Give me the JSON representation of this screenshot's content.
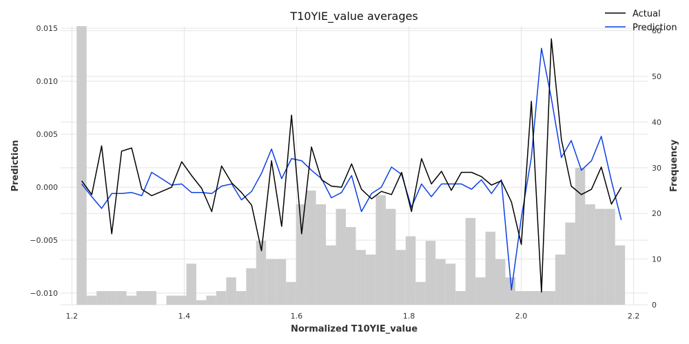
{
  "chart_data": {
    "type": "line+histogram",
    "title": "T10YIE_value averages",
    "xlabel": "Normalized T10YIE_value",
    "ylabel_left": "Prediction",
    "ylabel_right": "Frequency",
    "xlim": [
      1.18,
      2.225
    ],
    "ylim_left": [
      -0.0111,
      0.0152
    ],
    "ylim_right": [
      0,
      61
    ],
    "x_ticks": [
      1.2,
      1.4,
      1.6,
      1.8,
      2.0,
      2.2
    ],
    "x_tick_labels": [
      "1.2",
      "1.4",
      "1.6",
      "1.8",
      "2.0",
      "2.2"
    ],
    "y_left_ticks": [
      -0.01,
      -0.005,
      0.0,
      0.005,
      0.01,
      0.015
    ],
    "y_left_tick_labels": [
      "−0.010",
      "−0.005",
      "0.000",
      "0.005",
      "0.010",
      "0.015"
    ],
    "y_right_ticks": [
      0,
      10,
      20,
      30,
      40,
      50,
      60
    ],
    "y_right_tick_labels": [
      "0",
      "10",
      "20",
      "30",
      "40",
      "50",
      "60"
    ],
    "grid": true,
    "legend_position": "top-right",
    "colors": {
      "actual": "#000000",
      "prediction": "#0a3fe6",
      "histogram": "#cccccc",
      "grid": "#e3e3e3"
    },
    "histogram": {
      "bin_start": 1.2085,
      "bin_width": 0.01775,
      "counts": [
        61,
        2,
        3,
        3,
        3,
        2,
        3,
        3,
        0,
        2,
        2,
        9,
        1,
        2,
        3,
        6,
        3,
        8,
        14,
        10,
        10,
        5,
        22,
        25,
        22,
        13,
        21,
        17,
        12,
        11,
        24,
        21,
        12,
        15,
        5,
        14,
        10,
        9,
        3,
        19,
        6,
        16,
        10,
        6,
        3,
        3,
        3,
        3,
        11,
        18,
        30,
        22,
        21,
        21,
        13
      ]
    },
    "series": [
      {
        "name": "Actual",
        "x": [
          1.2175,
          1.2355,
          1.253,
          1.271,
          1.2885,
          1.3065,
          1.3245,
          1.342,
          1.36,
          1.3775,
          1.3955,
          1.413,
          1.431,
          1.449,
          1.4665,
          1.4845,
          1.502,
          1.52,
          1.5375,
          1.5555,
          1.5735,
          1.591,
          1.609,
          1.6265,
          1.6445,
          1.662,
          1.68,
          1.698,
          1.7155,
          1.7335,
          1.751,
          1.769,
          1.787,
          1.8045,
          1.8225,
          1.84,
          1.858,
          1.8755,
          1.8935,
          1.9115,
          1.929,
          1.947,
          1.9645,
          1.9825,
          2.0,
          2.018,
          2.036,
          2.0535,
          2.0715,
          2.089,
          2.107,
          2.125,
          2.1425,
          2.1605,
          2.178
        ],
        "values": [
          0.0006,
          -0.0007,
          0.0039,
          -0.0044,
          0.0034,
          0.0037,
          -0.0002,
          -0.0008,
          -0.0004,
          0.0,
          0.0024,
          0.0011,
          -0.0001,
          -0.0023,
          0.002,
          0.0004,
          -0.0005,
          -0.0017,
          -0.006,
          0.0025,
          -0.0037,
          0.0068,
          -0.0044,
          0.0038,
          0.0007,
          0.0001,
          0.0,
          0.0022,
          -0.0002,
          -0.0011,
          -0.0004,
          -0.0007,
          0.0014,
          -0.0023,
          0.0027,
          0.0003,
          0.0015,
          -0.0003,
          0.0014,
          0.0014,
          0.001,
          0.0002,
          0.0006,
          -0.0014,
          -0.0054,
          0.0081,
          -0.0099,
          0.014,
          0.0045,
          0.0001,
          -0.0007,
          -0.0002,
          0.0019,
          -0.0016,
          0.0
        ]
      },
      {
        "name": "Prediction",
        "x": [
          1.2175,
          1.2355,
          1.253,
          1.271,
          1.2885,
          1.3065,
          1.3245,
          1.342,
          1.36,
          1.3775,
          1.3955,
          1.413,
          1.431,
          1.449,
          1.4665,
          1.4845,
          1.502,
          1.52,
          1.5375,
          1.5555,
          1.5735,
          1.591,
          1.609,
          1.6265,
          1.6445,
          1.662,
          1.68,
          1.698,
          1.7155,
          1.7335,
          1.751,
          1.769,
          1.787,
          1.8045,
          1.8225,
          1.84,
          1.858,
          1.8755,
          1.8935,
          1.9115,
          1.929,
          1.947,
          1.9645,
          1.9825,
          2.0,
          2.018,
          2.036,
          2.0535,
          2.0715,
          2.089,
          2.107,
          2.125,
          2.1425,
          2.1605,
          2.178
        ],
        "values": [
          0.0003,
          -0.0009,
          -0.002,
          -0.0006,
          -0.0006,
          -0.0005,
          -0.0008,
          0.0014,
          0.0008,
          0.0002,
          0.0003,
          -0.0005,
          -0.0005,
          -0.0006,
          0.0001,
          0.0003,
          -0.0012,
          -0.0004,
          0.0013,
          0.0036,
          0.0008,
          0.0027,
          0.0025,
          0.0016,
          0.0008,
          -0.001,
          -0.0005,
          0.0011,
          -0.0023,
          -0.0006,
          0.0,
          0.0019,
          0.0012,
          -0.0019,
          0.0003,
          -0.0009,
          0.0003,
          0.0003,
          0.0003,
          -0.0002,
          0.0007,
          -0.0006,
          0.0007,
          -0.0097,
          -0.0029,
          0.0028,
          0.0131,
          0.0084,
          0.0028,
          0.0044,
          0.0016,
          0.0025,
          0.0048,
          0.0006,
          -0.0031
        ]
      }
    ]
  }
}
